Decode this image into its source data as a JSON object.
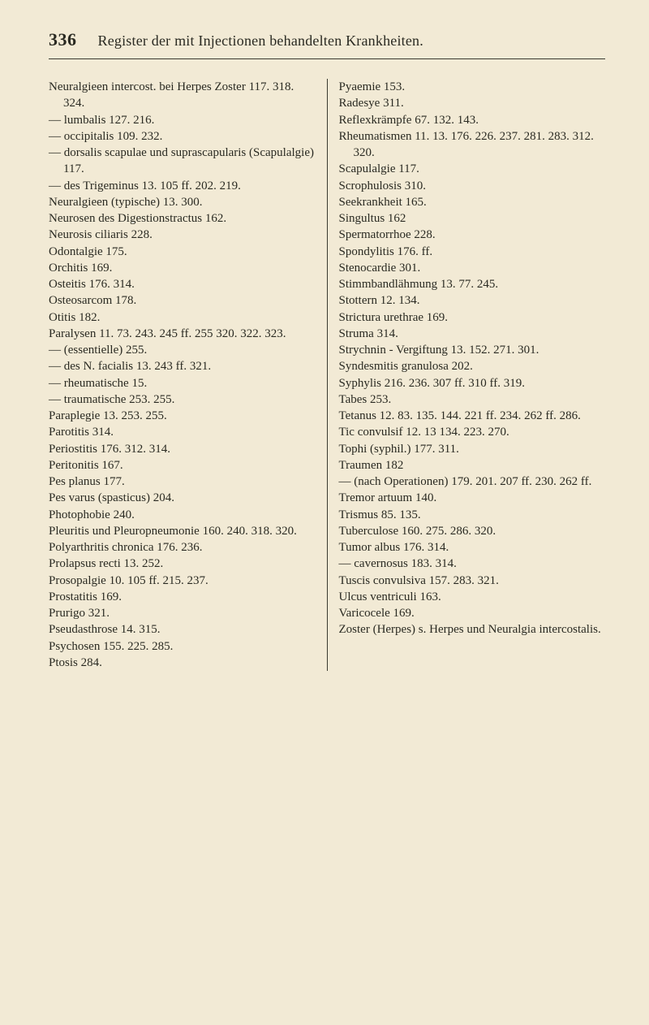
{
  "page_number": "336",
  "running_head": "Register der mit Injectionen behandelten Krankheiten.",
  "background_color": "#f2ead5",
  "text_color": "#2a2a22",
  "rule_color": "#3a3a30",
  "left_column": [
    "Neuralgieen intercost. bei Herpes Zo­ster 117. 318. 324.",
    "— lumbalis 127. 216.",
    "— occipitalis 109. 232.",
    "— dorsalis scapulae und suprascapula­ris (Scapulalgie) 117.",
    "— des Trigeminus 13. 105 ff. 202. 219.",
    "Neuralgieen (typische) 13. 300.",
    "Neurosen des Digestionstractus 162.",
    "Neurosis ciliaris 228.",
    "Odontalgie 175.",
    "Orchitis 169.",
    "Osteitis 176. 314.",
    "Osteosarcom 178.",
    "Otitis 182.",
    "Paralysen 11. 73. 243. 245 ff. 255 320. 322. 323.",
    "— (essentielle) 255.",
    "— des N. facialis 13. 243 ff. 321.",
    "— rheumatische 15.",
    "— traumatische 253. 255.",
    "Paraplegie 13. 253. 255.",
    "Parotitis 314.",
    "Periostitis 176. 312. 314.",
    "Peritonitis 167.",
    "Pes planus 177.",
    "Pes varus (spasticus) 204.",
    "Photophobie 240.",
    "Pleuritis und Pleuropneumonie 160. 240. 318. 320.",
    "Polyarthritis chronica 176. 236.",
    "Prolapsus recti 13. 252.",
    "Prosopalgie 10. 105 ff. 215. 237.",
    "Prostatitis 169.",
    "Prurigo 321.",
    "Pseudasthrose 14. 315.",
    "Psychosen 155. 225. 285.",
    "Ptosis 284."
  ],
  "right_column": [
    "Pyaemie 153.",
    "Radesye 311.",
    "Reflexkrämpfe 67. 132. 143.",
    "Rheumatismen 11. 13. 176. 226. 237. 281. 283. 312. 320.",
    "Scapulalgie 117.",
    "Scrophulosis 310.",
    "Seekrankheit 165.",
    "Singultus 162",
    "Spermatorrhoe 228.",
    "Spondylitis 176. ff.",
    "Stenocardie 301.",
    "Stimmbandlähmung 13. 77. 245.",
    "Stottern 12. 134.",
    "Strictura urethrae 169.",
    "Struma 314.",
    "Strychnin - Vergiftung 13. 152. 271. 301.",
    "Syndesmitis granulosa 202.",
    "Syphylis 216. 236. 307 ff. 310 ff. 319.",
    "Tabes 253.",
    "Tetanus 12. 83. 135. 144. 221 ff. 234. 262 ff. 286.",
    "Tic convulsif 12. 13 134. 223. 270.",
    "Tophi (syphil.) 177. 311.",
    "Traumen 182",
    "— (nach Operationen) 179. 201. 207 ff. 230. 262 ff.",
    "Tremor artuum 140.",
    "Trismus 85. 135.",
    "Tuberculose 160. 275. 286. 320.",
    "Tumor albus 176. 314.",
    "— cavernosus 183. 314.",
    "Tuscis convulsiva 157. 283. 321.",
    "Ulcus ventriculi 163.",
    "Varicocele 169.",
    "Zoster (Herpes) s. Herpes und Neural­gia intercostalis."
  ]
}
